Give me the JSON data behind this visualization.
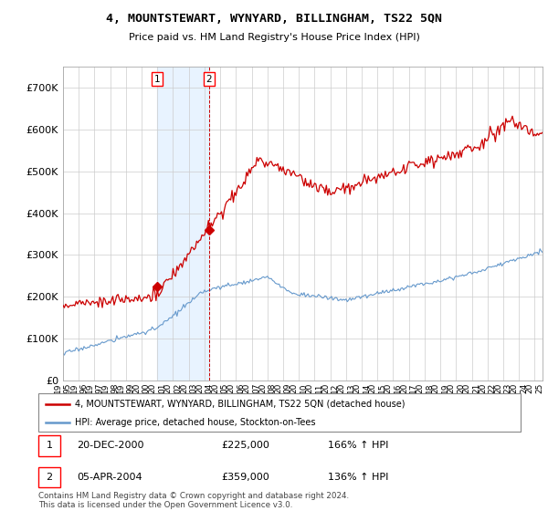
{
  "title": "4, MOUNTSTEWART, WYNYARD, BILLINGHAM, TS22 5QN",
  "subtitle": "Price paid vs. HM Land Registry's House Price Index (HPI)",
  "ylabel_ticks": [
    "£0",
    "£100K",
    "£200K",
    "£300K",
    "£400K",
    "£500K",
    "£600K",
    "£700K"
  ],
  "ytick_vals": [
    0,
    100000,
    200000,
    300000,
    400000,
    500000,
    600000,
    700000
  ],
  "ylim": [
    0,
    750000
  ],
  "hpi_color": "#6699cc",
  "price_color": "#cc0000",
  "sale1_x": 2001.0,
  "sale1_price": 225000,
  "sale2_x": 2004.29,
  "sale2_price": 359000,
  "legend_line1": "4, MOUNTSTEWART, WYNYARD, BILLINGHAM, TS22 5QN (detached house)",
  "legend_line2": "HPI: Average price, detached house, Stockton-on-Tees",
  "footer": "Contains HM Land Registry data © Crown copyright and database right 2024.\nThis data is licensed under the Open Government Licence v3.0.",
  "table_row1": [
    "1",
    "20-DEC-2000",
    "£225,000",
    "166% ↑ HPI"
  ],
  "table_row2": [
    "2",
    "05-APR-2004",
    "£359,000",
    "136% ↑ HPI"
  ],
  "background_color": "#ffffff",
  "grid_color": "#cccccc",
  "shaded_region_color": "#ddeeff"
}
